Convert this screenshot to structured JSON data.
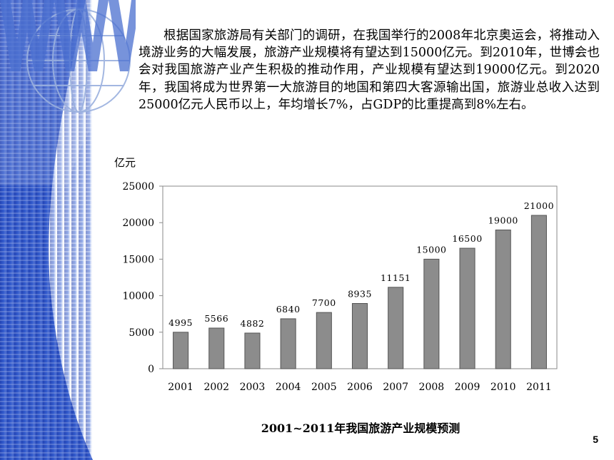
{
  "paragraph": "根据国家旅游局有关部门的调研，在我国举行的2008年北京奥运会，将推动入境游业务的大幅发展，旅游产业规模将有望达到15000亿元。到2010年，世博会也会对我国旅游产业产生积极的推动作用，产业规模有望达到19000亿元。到2020年，我国将成为世界第一大旅游目的地国和第四大客源输出国，旅游业总收入达到25000亿元人民币以上，年均增长7%，占GDP的比重提高到8%左右。",
  "caption": "2001~2011年我国旅游产业规模预测",
  "page_number": "5",
  "colors": {
    "bar": "#8c8c8c",
    "deco_blue": "#1f3fb0"
  },
  "chart_data": {
    "type": "bar",
    "title": "",
    "xlabel": "",
    "ylabel": "亿元",
    "categories": [
      "2001",
      "2002",
      "2003",
      "2004",
      "2005",
      "2006",
      "2007",
      "2008",
      "2009",
      "2010",
      "2011"
    ],
    "values": [
      4995,
      5566,
      4882,
      6840,
      7700,
      8935,
      11151,
      15000,
      16500,
      19000,
      21000
    ],
    "data_labels": [
      "4995",
      "5566",
      "4882",
      "6840",
      "7700",
      "8935",
      "11151",
      "15000",
      "16500",
      "19000",
      "21000"
    ],
    "ylim": [
      0,
      25000
    ],
    "yticks": [
      "0",
      "5000",
      "10000",
      "15000",
      "20000",
      "25000"
    ],
    "grid": false
  }
}
